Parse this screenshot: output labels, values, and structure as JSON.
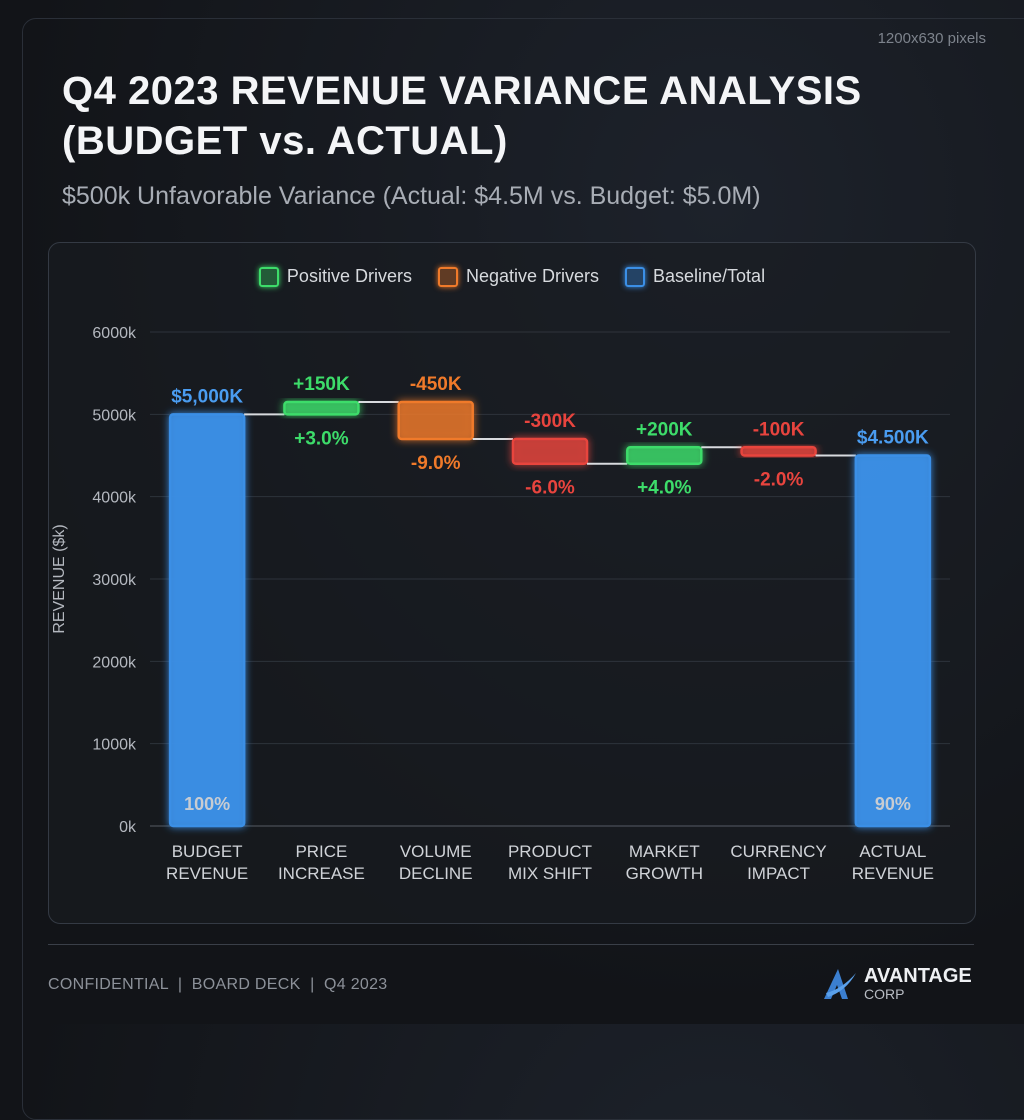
{
  "header": {
    "dims": "1200x630 pixels",
    "title": "Q4 2023 REVENUE VARIANCE ANALYSIS (BUDGET vs. ACTUAL)",
    "subtitle": "$500k Unfavorable Variance (Actual: $4.5M vs. Budget: $5.0M)"
  },
  "legend": [
    {
      "label": "Positive Drivers",
      "color": "#3ddc6a"
    },
    {
      "label": "Negative Drivers",
      "color": "#f07a2a"
    },
    {
      "label": "Baseline/Total",
      "color": "#3b8fe6"
    }
  ],
  "chart_data": {
    "type": "waterfall",
    "ylabel": "REVENUE ($k)",
    "ylim": [
      0,
      6000
    ],
    "yticks": [
      "0k",
      "1000k",
      "2000k",
      "3000k",
      "4000k",
      "5000k",
      "6000k"
    ],
    "grid": true,
    "legend_position": "top",
    "categories": [
      [
        "BUDGET",
        "REVENUE"
      ],
      [
        "PRICE",
        "INCREASE"
      ],
      [
        "VOLUME",
        "DECLINE"
      ],
      [
        "PRODUCT",
        "MIX SHIFT"
      ],
      [
        "MARKET",
        "GROWTH"
      ],
      [
        "CURRENCY",
        "IMPACT"
      ],
      [
        "ACTUAL",
        "REVENUE"
      ]
    ],
    "values": [
      5000,
      150,
      -450,
      -300,
      200,
      -100,
      4500
    ],
    "kinds": [
      "total",
      "pos",
      "neg",
      "neg",
      "pos",
      "neg",
      "total"
    ],
    "value_labels": [
      "$5,000K",
      "+150K",
      "-450K",
      "-300K",
      "+200K",
      "-100K",
      "$4.500K"
    ],
    "pct_labels": [
      "100%",
      "+3.0%",
      "-9.0%",
      "-6.0%",
      "+4.0%",
      "-2.0%",
      "90%"
    ],
    "colors": {
      "total": "#3b8fe6",
      "pos": "#3ddc6a",
      "neg_major": "#f07a2a",
      "neg": "#e8443e",
      "total_label": "#4a9cf0"
    }
  },
  "footer": {
    "text": "CONFIDENTIAL  |  BOARD DECK  |  Q4 2023",
    "brand": "AVANTAGE",
    "brand_sub": "CORP"
  }
}
